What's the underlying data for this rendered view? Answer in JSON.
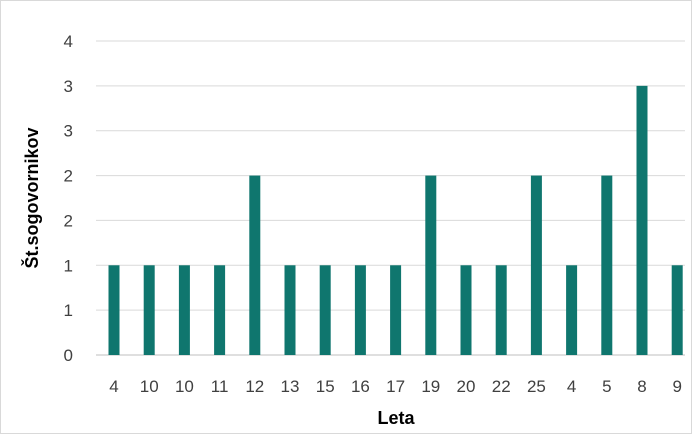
{
  "chart_data": {
    "type": "bar",
    "title": "",
    "xlabel": "Leta",
    "ylabel": "Št.sogovornikov",
    "categories": [
      "4",
      "10",
      "10",
      "11",
      "12",
      "13",
      "15",
      "16",
      "17",
      "19",
      "20",
      "22",
      "25",
      "4",
      "5",
      "8",
      "9"
    ],
    "values": [
      1,
      1,
      1,
      1,
      2,
      1,
      1,
      1,
      1,
      2,
      1,
      1,
      2,
      1,
      2,
      3,
      1
    ],
    "y_ticks": [
      {
        "value": 0,
        "label": "0"
      },
      {
        "value": 0.5,
        "label": "1"
      },
      {
        "value": 1,
        "label": "1"
      },
      {
        "value": 1.5,
        "label": "2"
      },
      {
        "value": 2,
        "label": "2"
      },
      {
        "value": 2.5,
        "label": "3"
      },
      {
        "value": 3,
        "label": "3"
      },
      {
        "value": 3.5,
        "label": "4"
      }
    ],
    "ylim": [
      0,
      3.5
    ],
    "grid": true,
    "legend": "none",
    "bar_color": "#0f766e"
  }
}
